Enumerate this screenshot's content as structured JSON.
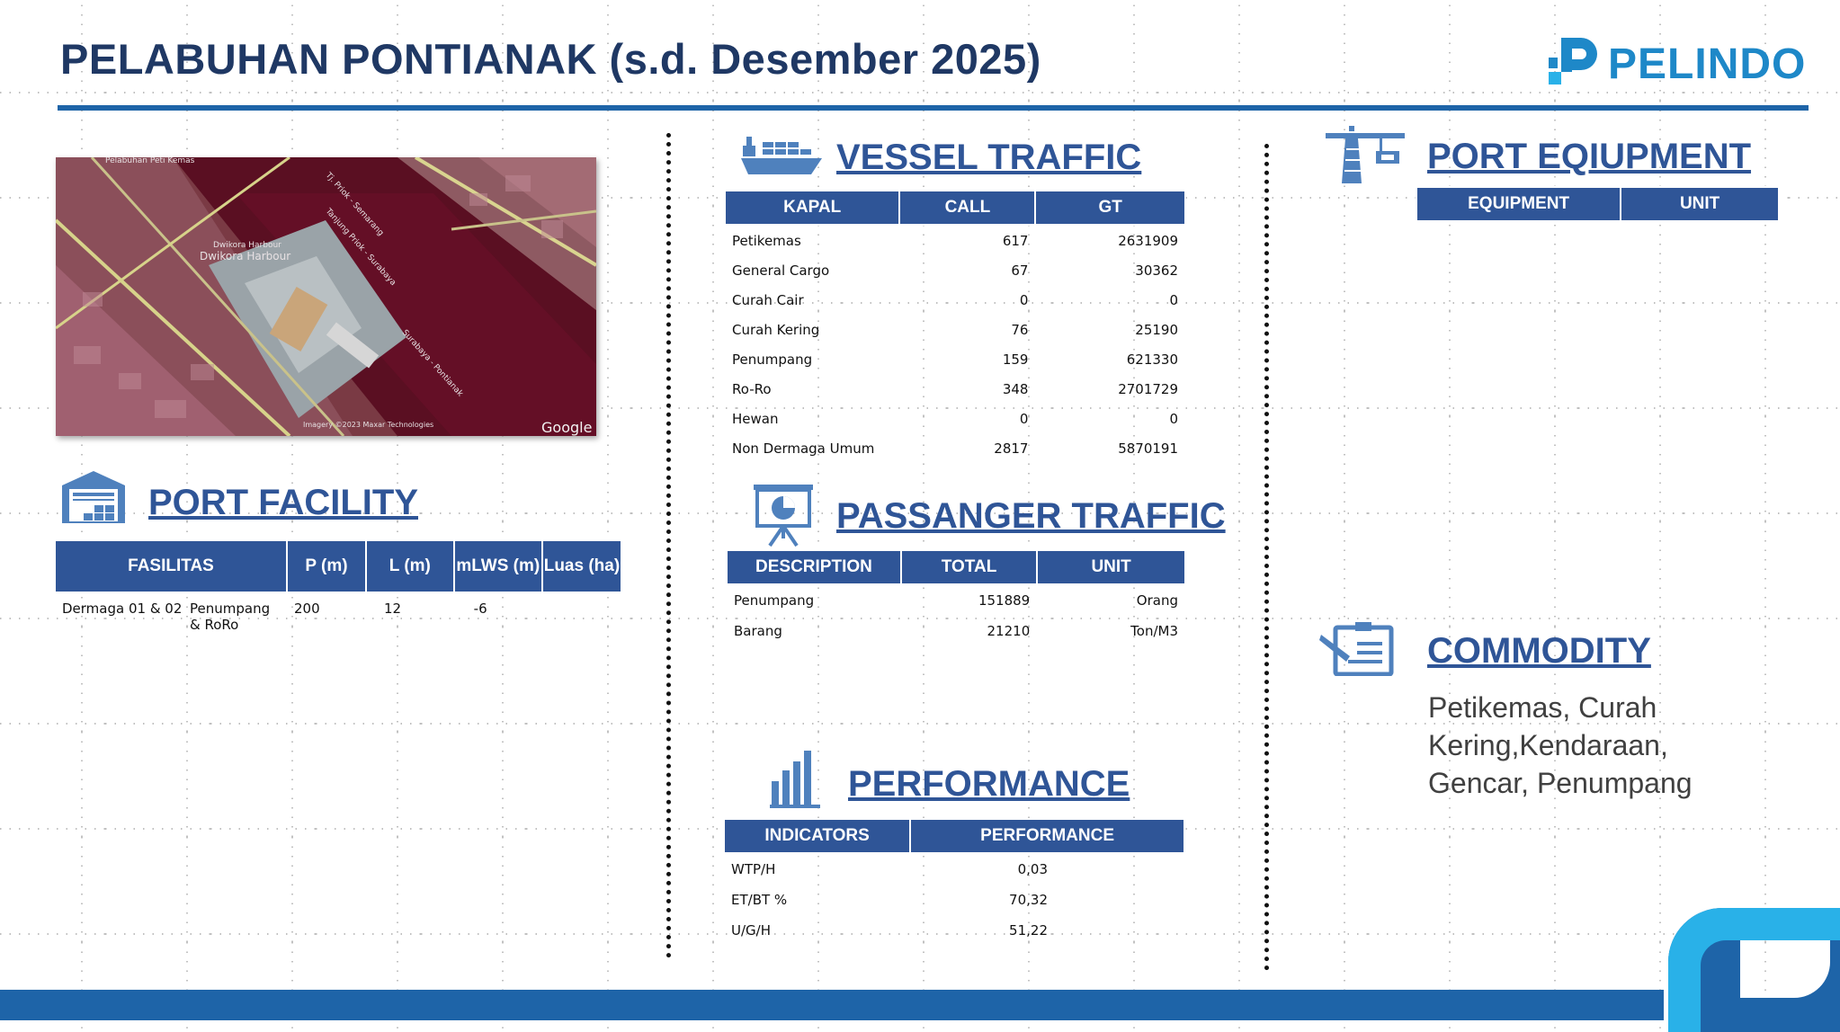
{
  "header": {
    "title": "PELABUHAN PONTIANAK  (s.d. Desember 2025)",
    "logo_text": "PELINDO"
  },
  "map": {
    "labels": {
      "top_left": "Pelabuhan Peti Kemas",
      "harbour_small": "Dwikora Harbour",
      "harbour": "Dwikora Harbour",
      "route_1": "Tj. Priok - Semarang",
      "route_2": "Tanjung Priok - Surabaya",
      "route_3": "Surabaya - Pontianak",
      "credit_left": "Imagery ©2023 Maxar Technologies",
      "google": "Google"
    }
  },
  "port_facility": {
    "title": "PORT FACILITY",
    "headers": [
      "FASILITAS",
      "P (m)",
      "L (m)",
      "mLWS (m)",
      "Luas (ha)"
    ],
    "rows": [
      {
        "name": "Dermaga 01 & 02",
        "type": "Penumpang & RoRo",
        "p": "200",
        "l": "12",
        "mlws": "-6",
        "luas": ""
      }
    ]
  },
  "vessel_traffic": {
    "title": "VESSEL TRAFFIC",
    "headers": [
      "KAPAL",
      "CALL",
      "GT"
    ],
    "rows": [
      {
        "kapal": "Petikemas",
        "call": "617",
        "gt": "2631909"
      },
      {
        "kapal": "General Cargo",
        "call": "67",
        "gt": "30362"
      },
      {
        "kapal": "Curah Cair",
        "call": "0",
        "gt": "0"
      },
      {
        "kapal": "Curah Kering",
        "call": "76",
        "gt": "25190"
      },
      {
        "kapal": "Penumpang",
        "call": "159",
        "gt": "621330"
      },
      {
        "kapal": "Ro-Ro",
        "call": "348",
        "gt": "2701729"
      },
      {
        "kapal": "Hewan",
        "call": "0",
        "gt": "0"
      },
      {
        "kapal": "Non Dermaga Umum",
        "call": "2817",
        "gt": "5870191"
      }
    ]
  },
  "passenger_traffic": {
    "title": "PASSANGER TRAFFIC",
    "headers": [
      "DESCRIPTION",
      "TOTAL",
      "UNIT"
    ],
    "rows": [
      {
        "description": "Penumpang",
        "total": "151889",
        "unit": "Orang"
      },
      {
        "description": "Barang",
        "total": "21210",
        "unit": "Ton/M3"
      }
    ]
  },
  "performance": {
    "title": "PERFORMANCE",
    "headers": [
      "INDICATORS",
      "PERFORMANCE"
    ],
    "rows": [
      {
        "indicator": "WTP/H",
        "value": "0,03"
      },
      {
        "indicator": "ET/BT %",
        "value": "70,32"
      },
      {
        "indicator": "U/G/H",
        "value": "51,22"
      }
    ]
  },
  "port_equipment": {
    "title": "PORT EQIUPMENT",
    "headers": [
      "EQUIPMENT",
      "UNIT"
    ]
  },
  "commodity": {
    "title": "COMMODITY",
    "lines": [
      "Petikemas, Curah",
      "Kering,Kendaraan,",
      "Gencar, Penumpang"
    ]
  },
  "colors": {
    "header_fill": "#2f5597",
    "section_title": "#2f5597",
    "title_text": "#1f3864",
    "accent_bar": "#1e64a8",
    "logo_blue": "#1e88c8",
    "icon_blue": "#4f81bd"
  },
  "icons": {
    "logo_mark": "pelindo-mark-icon",
    "vessel": "ship-icon",
    "facility": "warehouse-icon",
    "passenger": "presentation-board-icon",
    "performance": "bar-chart-icon",
    "equipment": "crane-icon",
    "commodity": "clipboard-pen-icon"
  }
}
